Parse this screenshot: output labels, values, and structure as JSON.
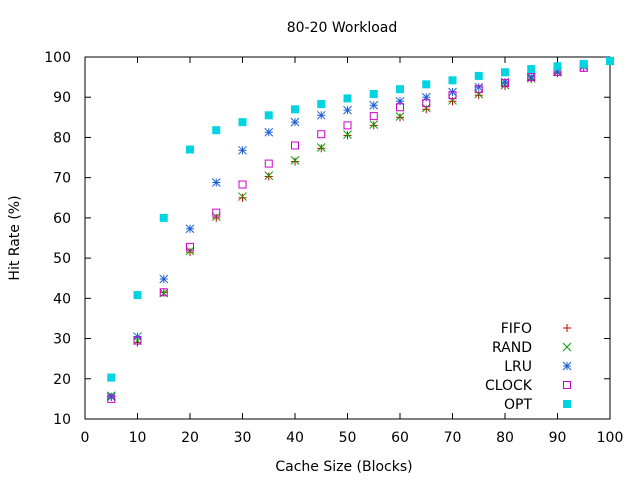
{
  "chart_data": {
    "type": "scatter",
    "title": "80-20 Workload",
    "xlabel": "Cache Size (Blocks)",
    "ylabel": "Hit Rate (%)",
    "xlim": [
      0,
      100
    ],
    "ylim": [
      10,
      100
    ],
    "xticks": [
      0,
      10,
      20,
      30,
      40,
      50,
      60,
      70,
      80,
      90,
      100
    ],
    "yticks": [
      10,
      20,
      30,
      40,
      50,
      60,
      70,
      80,
      90,
      100
    ],
    "grid": false,
    "legend_position": "bottom-right",
    "x": [
      5,
      10,
      15,
      20,
      25,
      30,
      35,
      40,
      45,
      50,
      55,
      60,
      65,
      70,
      75,
      80,
      85,
      90,
      95,
      100
    ],
    "series": [
      {
        "name": "FIFO",
        "marker": "plus",
        "color": "#cc0000",
        "values": [
          15.5,
          29,
          41.5,
          51.5,
          60,
          65,
          70.3,
          74,
          77.3,
          80.5,
          83,
          85,
          87,
          89,
          90.5,
          92.8,
          94.5,
          96,
          97.5,
          99
        ]
      },
      {
        "name": "RAND",
        "marker": "cross",
        "color": "#00a000",
        "values": [
          15.8,
          29.5,
          41.3,
          51.8,
          60.3,
          65.3,
          70.5,
          74.3,
          77.5,
          80.7,
          83.2,
          85.2,
          87.3,
          89.2,
          90.8,
          93,
          94.7,
          96.2,
          97.7,
          99
        ]
      },
      {
        "name": "LRU",
        "marker": "star",
        "color": "#1a5fd6",
        "values": [
          15.5,
          30.5,
          44.8,
          57.3,
          68.8,
          76.8,
          81.3,
          83.8,
          85.5,
          86.8,
          88,
          89,
          90,
          91.3,
          92.5,
          93.8,
          95,
          96.3,
          97.7,
          99
        ]
      },
      {
        "name": "CLOCK",
        "marker": "square-open",
        "color": "#cc00cc",
        "values": [
          15,
          29.5,
          41.5,
          52.8,
          61.3,
          68.3,
          73.5,
          78,
          80.8,
          83,
          85.3,
          87.5,
          88.5,
          90.5,
          92,
          93.5,
          95,
          96.3,
          97.3,
          99
        ]
      },
      {
        "name": "OPT",
        "marker": "square-filled",
        "color": "#00d4e0",
        "values": [
          20.3,
          40.8,
          60,
          77,
          81.8,
          83.8,
          85.5,
          87,
          88.3,
          89.7,
          90.8,
          92,
          93.2,
          94.2,
          95.3,
          96.2,
          97,
          97.7,
          98.3,
          99
        ]
      }
    ]
  }
}
